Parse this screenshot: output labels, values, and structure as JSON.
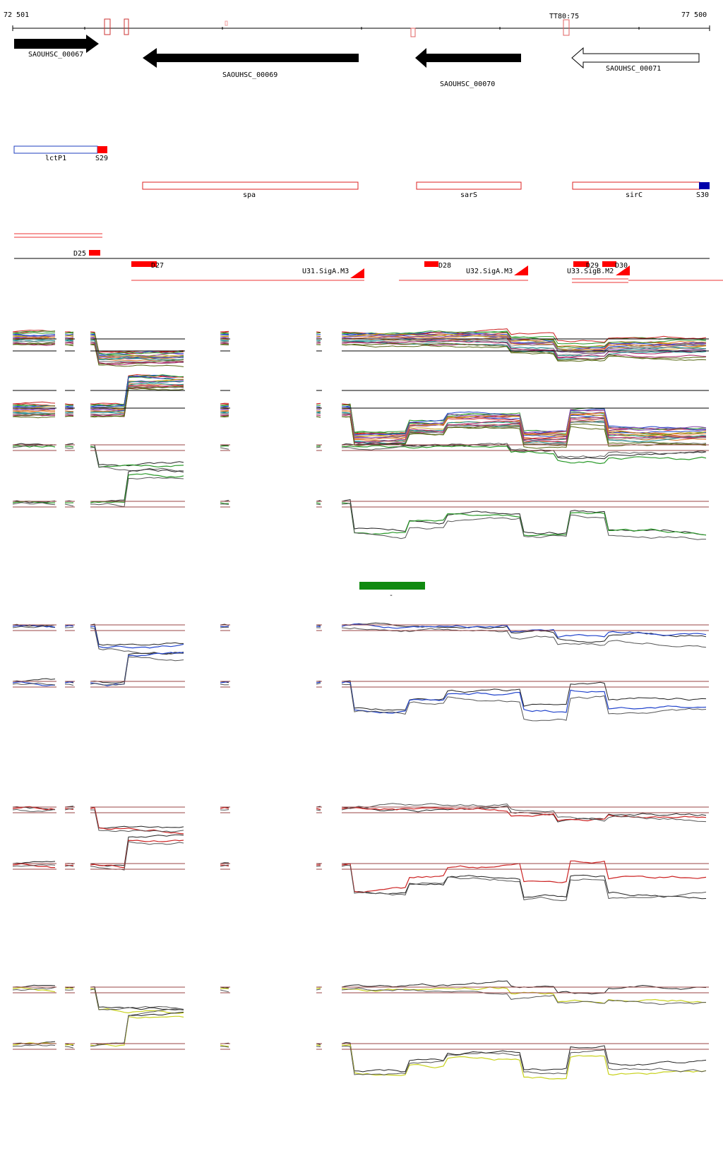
{
  "coords": {
    "start": "72 501",
    "end": "77 500",
    "marker": "TT80:75"
  },
  "genes": [
    {
      "name": "SAOUHSC_00067",
      "strand": "+",
      "style": "filled"
    },
    {
      "name": "SAOUHSC_00069",
      "strand": "-",
      "style": "filled"
    },
    {
      "name": "SAOUHSC_00070",
      "strand": "-",
      "style": "filled"
    },
    {
      "name": "SAOUHSC_00071",
      "strand": "-",
      "style": "outline"
    }
  ],
  "features": [
    {
      "name": "lctP1",
      "color": "#1f3fbf"
    },
    {
      "name": "S29",
      "color": "#ff0000"
    },
    {
      "name": "spa",
      "color": "#dd2222"
    },
    {
      "name": "sarS",
      "color": "#dd2222"
    },
    {
      "name": "sirC",
      "color": "#dd2222"
    },
    {
      "name": "S30",
      "color": "#0000aa"
    }
  ],
  "segments": [
    {
      "name": "D25"
    },
    {
      "name": "D27"
    },
    {
      "name": "U31.SigA.M3"
    },
    {
      "name": "D28"
    },
    {
      "name": "U32.SigA.M3"
    },
    {
      "name": "U33.SigB.M2"
    },
    {
      "name": "D29"
    },
    {
      "name": "D30"
    }
  ],
  "tracks": [
    {
      "name": "all-conditions",
      "color": "multicolor"
    },
    {
      "name": "green-condition",
      "color": "#2a9a2a"
    },
    {
      "name": "blue-condition",
      "color": "#2244cc"
    },
    {
      "name": "red-condition",
      "color": "#cc2222"
    },
    {
      "name": "yellow-condition",
      "color": "#c8d21e"
    }
  ],
  "legend": {
    "color": "#108a10",
    "label": "-"
  }
}
